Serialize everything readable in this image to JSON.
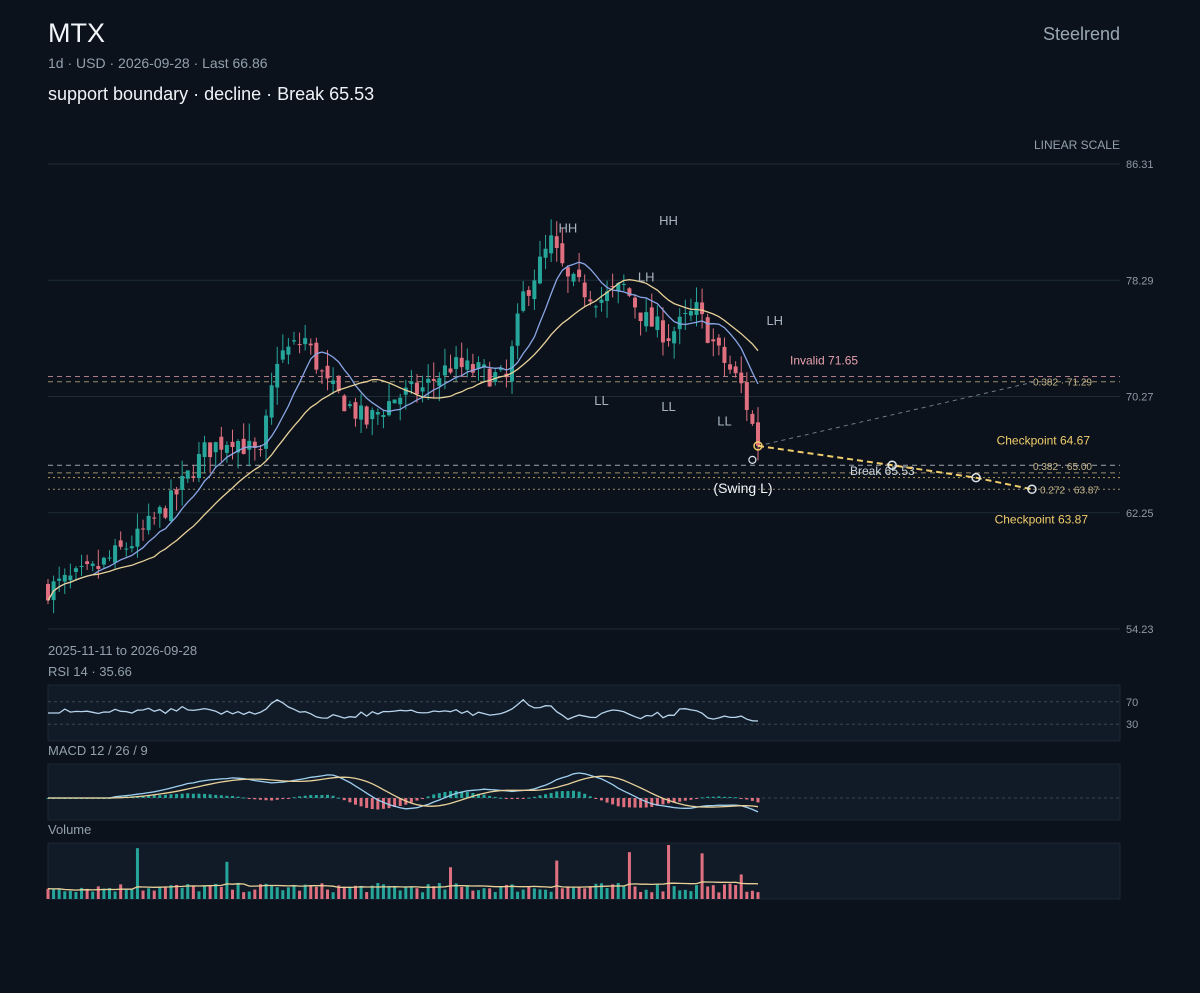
{
  "header": {
    "symbol": "MTX",
    "brand": "Steelrend",
    "interval": "1d",
    "currency": "USD",
    "date": "2026-09-28",
    "last": "Last 66.86",
    "headline": "support boundary · decline · Break 65.53",
    "scale": "LINEAR SCALE",
    "date_range": "2025-11-11 to 2026-09-28"
  },
  "colors": {
    "background": "#0b121c",
    "up": "#26a69a",
    "down": "#e0707f",
    "ma_fast": "#8aa6e6",
    "ma_slow": "#e8d098",
    "annotation": "#f0cc6b",
    "grid": "#1e2c36"
  },
  "chart_data": [
    {
      "type": "candlestick",
      "title": "MTX",
      "y_ticks": [
        86.31,
        78.29,
        70.27,
        62.25,
        54.23
      ],
      "ylim": [
        54.23,
        86.31
      ],
      "date_start": "2025-11-11",
      "date_end": "2026-09-28",
      "swing_points": [
        {
          "label": "HH",
          "bar": 93,
          "price": 80.9
        },
        {
          "label": "HH",
          "bar": 111,
          "price": 81.4
        },
        {
          "label": "LH",
          "bar": 107,
          "price": 77.5
        },
        {
          "label": "LH",
          "bar": 130,
          "price": 74.5
        },
        {
          "label": "LL",
          "bar": 99,
          "price": 71.2
        },
        {
          "label": "LL",
          "bar": 111,
          "price": 70.8
        },
        {
          "label": "LL",
          "bar": 121,
          "price": 69.8
        }
      ],
      "levels": [
        {
          "label": "Invalid 71.65",
          "price": 71.65,
          "color": "#e8a0ae",
          "style": "dashed"
        },
        {
          "label": "0.382 · 71.29",
          "price": 71.29,
          "color": "#c7b58a",
          "style": "dashed"
        },
        {
          "label": "0.382 · 65.00",
          "price": 65.0,
          "color": "#c7b58a",
          "style": "dashed"
        },
        {
          "label": "Break 65.53",
          "price": 65.53,
          "color": "#cfd6dd",
          "style": "dashed"
        },
        {
          "label": "0.272 · 63.87",
          "price": 63.87,
          "color": "#c7b58a",
          "style": "dotted"
        },
        {
          "label": "",
          "price": 64.67,
          "color": "#f0cc6b",
          "style": "dotted"
        }
      ],
      "checkpoints": [
        {
          "label": "Checkpoint 64.67",
          "price": 64.67
        },
        {
          "label": "Checkpoint 63.87",
          "price": 63.87
        }
      ],
      "swing_label": "(Swing L)",
      "last_price": 66.86,
      "projection": [
        {
          "bar": 127,
          "price": 66.86
        },
        {
          "bar": 151,
          "price": 65.53
        },
        {
          "bar": 166,
          "price": 64.67
        },
        {
          "bar": 176,
          "price": 63.87
        }
      ],
      "ghost_target": 71.29
    },
    {
      "type": "line",
      "title": "RSI 14 · 35.66",
      "value": 35.66,
      "ylim": [
        0,
        100
      ],
      "levels": [
        70,
        30
      ]
    },
    {
      "type": "line",
      "title": "MACD 12 / 26 / 9",
      "series": [
        {
          "name": "MACD"
        },
        {
          "name": "Signal"
        },
        {
          "name": "Histogram"
        }
      ]
    },
    {
      "type": "bar",
      "title": "Volume"
    }
  ]
}
